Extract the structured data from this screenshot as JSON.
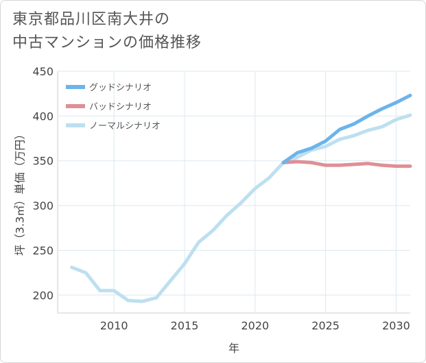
{
  "title_lines": [
    "東京都品川区南大井の",
    "中古マンションの価格推移"
  ],
  "chart_data": {
    "type": "line",
    "title": "東京都品川区南大井の中古マンションの価格推移",
    "xlabel": "年",
    "ylabel": "坪（3.3㎡）単価（万円）",
    "xlim": [
      2006,
      2031
    ],
    "ylim": [
      180,
      450
    ],
    "x_ticks": [
      2010,
      2015,
      2020,
      2025,
      2030
    ],
    "y_ticks": [
      200,
      250,
      300,
      350,
      400,
      450
    ],
    "grid": true,
    "legend_position": "top-left",
    "series": [
      {
        "name": "グッドシナリオ",
        "color": "#6cb4ea",
        "x": [
          2022,
          2023,
          2024,
          2025,
          2026,
          2027,
          2028,
          2029,
          2030,
          2031
        ],
        "values": [
          348,
          359,
          364,
          372,
          385,
          391,
          400,
          408,
          415,
          423
        ]
      },
      {
        "name": "バッドシナリオ",
        "color": "#df8f95",
        "x": [
          2022,
          2023,
          2024,
          2025,
          2026,
          2027,
          2028,
          2029,
          2030,
          2031
        ],
        "values": [
          348,
          349,
          348,
          345,
          345,
          346,
          347,
          345,
          344,
          344
        ]
      },
      {
        "name": "ノーマルシナリオ",
        "color": "#bde0f0",
        "x": [
          2007,
          2008,
          2009,
          2010,
          2011,
          2012,
          2013,
          2014,
          2015,
          2016,
          2017,
          2018,
          2019,
          2020,
          2021,
          2022,
          2023,
          2024,
          2025,
          2026,
          2027,
          2028,
          2029,
          2030,
          2031
        ],
        "values": [
          231,
          225,
          205,
          205,
          194,
          193,
          197,
          216,
          235,
          259,
          272,
          289,
          303,
          319,
          331,
          348,
          354,
          362,
          366,
          374,
          378,
          384,
          388,
          396,
          401
        ]
      }
    ]
  }
}
